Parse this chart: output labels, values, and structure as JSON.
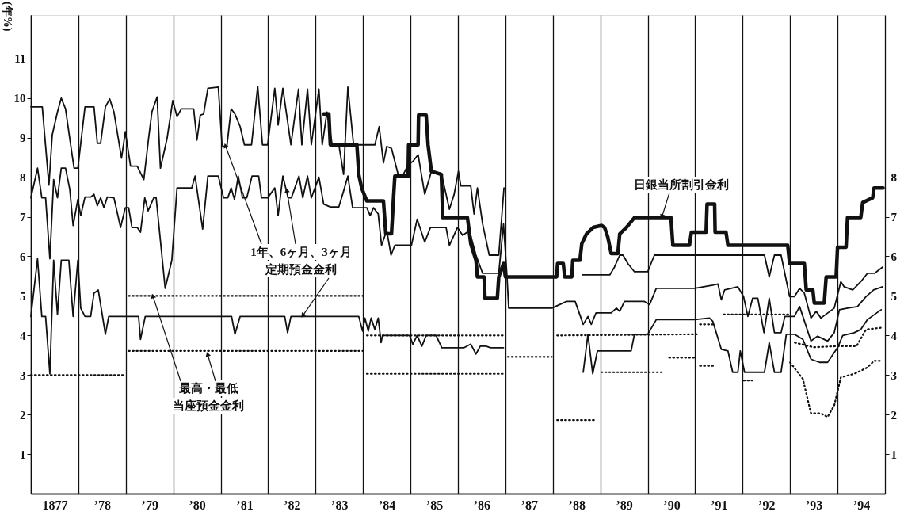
{
  "chart_data": {
    "type": "line",
    "ylabel": "(年%)",
    "xlim": [
      1876.5,
      1894.5
    ],
    "ylim": [
      0,
      12.1
    ],
    "yticks": [
      1,
      2,
      3,
      4,
      5,
      6,
      7,
      8,
      9,
      10,
      11
    ],
    "y2lim": [
      0,
      12.1
    ],
    "y2ticks": [
      1,
      2,
      3,
      4,
      5,
      6,
      7,
      8
    ],
    "xticks": [
      {
        "value": 1876.5,
        "label": null
      },
      {
        "value": 1877,
        "label": "1877"
      },
      {
        "value": 1877.5,
        "label": null
      },
      {
        "value": 1878,
        "label": "’78"
      },
      {
        "value": 1878.5,
        "label": null
      },
      {
        "value": 1879,
        "label": "’79"
      },
      {
        "value": 1879.5,
        "label": null
      },
      {
        "value": 1880,
        "label": "’80"
      },
      {
        "value": 1880.5,
        "label": null
      },
      {
        "value": 1881,
        "label": "’81"
      },
      {
        "value": 1881.5,
        "label": null
      },
      {
        "value": 1882,
        "label": "’82"
      },
      {
        "value": 1882.5,
        "label": null
      },
      {
        "value": 1883,
        "label": "’83"
      },
      {
        "value": 1883.5,
        "label": null
      },
      {
        "value": 1884,
        "label": "’84"
      },
      {
        "value": 1884.5,
        "label": null
      },
      {
        "value": 1885,
        "label": "’85"
      },
      {
        "value": 1885.5,
        "label": null
      },
      {
        "value": 1886,
        "label": "’86"
      },
      {
        "value": 1886.5,
        "label": null
      },
      {
        "value": 1887,
        "label": "’87"
      },
      {
        "value": 1887.5,
        "label": null
      },
      {
        "value": 1888,
        "label": "’88"
      },
      {
        "value": 1888.5,
        "label": null
      },
      {
        "value": 1889,
        "label": "’89"
      },
      {
        "value": 1889.5,
        "label": null
      },
      {
        "value": 1890,
        "label": "’90"
      },
      {
        "value": 1890.5,
        "label": null
      },
      {
        "value": 1891,
        "label": "’91"
      },
      {
        "value": 1891.5,
        "label": null
      },
      {
        "value": 1892,
        "label": "’92"
      },
      {
        "value": 1892.5,
        "label": null
      },
      {
        "value": 1893,
        "label": "’93"
      },
      {
        "value": 1893.5,
        "label": null
      },
      {
        "value": 1894,
        "label": "’94"
      },
      {
        "value": 1894.5,
        "label": null
      }
    ],
    "grid": "x",
    "annotations": [
      {
        "text": "1年、6ヶ月、3ヶ月",
        "x": 1880.6,
        "y": 8.8
      },
      {
        "text": "定期預金金利",
        "x": 1882.23,
        "y": 4.5
      },
      {
        "text": "最高・最低",
        "x": 1879.07,
        "y": 5.0
      },
      "当座預金金利",
      {
        "text": "日銀当所割引金利",
        "x": 1889.8,
        "y": 7.0
      }
    ],
    "series": [
      {
        "color": "#111111",
        "line_style": "solid",
        "x": [
          1876.5,
          1876.74,
          1876.88,
          1876.95,
          1877.06,
          1877.14,
          1877.23,
          1877.34,
          1877.41,
          1877.49,
          1877.64,
          1877.83,
          1877.9,
          1877.97,
          1878.07,
          1878.16,
          1878.25,
          1878.41,
          1878.49,
          1878.6,
          1878.74,
          1878.88,
          1878.98,
          1879.05,
          1879.16,
          1879.23,
          1879.37,
          1879.49,
          1879.58,
          1879.67,
          1879.93,
          1880.0,
          1880.07,
          1880.14,
          1880.23,
          1880.45,
          1880.53,
          1880.63,
          1880.72,
          1880.8,
          1880.91,
          1881.0,
          1881.15,
          1881.28,
          1881.38,
          1881.49,
          1881.64,
          1881.71,
          1881.81,
          1881.98,
          1882.14,
          1882.21,
          1882.33,
          1882.41,
          1882.57,
          1882.64,
          1882.74,
          1882.85,
          1882.99,
          1883.09,
          1883.18,
          1883.3,
          1883.75,
          1883.84,
          1883.93,
          1884.0,
          1884.1,
          1884.24,
          1884.35,
          1884.45,
          1884.55,
          1884.66,
          1884.8,
          1884.94,
          1885.15,
          1885.32,
          1885.42,
          1885.51,
          1885.56,
          1885.77,
          1885.84,
          1885.91,
          1886.02,
          1886.16,
          1886.36,
          1886.47,
          1887.0,
          1888.13,
          1888.7,
          1888.8,
          1888.91,
          1888.98,
          1889.08,
          1889.22,
          1889.5,
          1889.64,
          1891.96,
          1892.06,
          1892.17,
          1892.31,
          1892.49,
          1892.59,
          1892.7,
          1892.8,
          1892.94,
          1893.05,
          1893.15,
          1893.43,
          1893.57,
          1893.64,
          1893.82,
          1893.99,
          1894.13,
          1894.28,
          1894.45
        ],
        "values": [
          9.78,
          9.78,
          7.8,
          9.07,
          9.65,
          10.0,
          9.73,
          8.8,
          8.23,
          8.23,
          9.78,
          9.78,
          8.86,
          8.86,
          9.78,
          9.98,
          9.65,
          8.48,
          9.15,
          8.28,
          8.28,
          7.94,
          8.98,
          9.65,
          10.03,
          8.23,
          8.98,
          9.94,
          9.53,
          9.73,
          9.73,
          8.94,
          9.57,
          9.6,
          10.25,
          10.28,
          8.78,
          8.78,
          9.73,
          9.6,
          9.28,
          8.82,
          8.82,
          10.3,
          8.82,
          8.82,
          10.25,
          9.32,
          10.25,
          8.82,
          10.23,
          8.82,
          10.23,
          8.82,
          10.23,
          8.82,
          9.65,
          8.82,
          8.82,
          8.07,
          10.28,
          8.82,
          8.82,
          9.28,
          8.36,
          8.78,
          8.73,
          8.07,
          8.07,
          8.32,
          8.4,
          8.57,
          7.57,
          8.15,
          8.1,
          7.19,
          7.57,
          8.15,
          7.78,
          7.78,
          7.07,
          7.73,
          6.82,
          6.03,
          6.03,
          7.73,
          null,
          5.53,
          5.53,
          5.73,
          6.03,
          6.03,
          5.82,
          5.61,
          5.61,
          6.03,
          6.03,
          5.48,
          6.03,
          6.03,
          4.98,
          4.98,
          5.19,
          5.07,
          4.44,
          4.61,
          4.44,
          4.69,
          5.36,
          5.23,
          5.15,
          5.36,
          5.57,
          5.57,
          5.73
        ]
      },
      {
        "color": "#111111",
        "line_style": "solid",
        "x": [
          1876.5,
          1876.64,
          1876.73,
          1876.81,
          1876.9,
          1876.98,
          1877.06,
          1877.14,
          1877.23,
          1877.32,
          1877.39,
          1877.49,
          1877.55,
          1877.64,
          1877.76,
          1877.83,
          1877.9,
          1877.97,
          1878.04,
          1878.11,
          1878.25,
          1878.39,
          1878.49,
          1878.56,
          1878.63,
          1878.74,
          1878.81,
          1878.9,
          1878.97,
          1879.09,
          1879.14,
          1879.33,
          1879.47,
          1879.58,
          1879.89,
          1879.96,
          1880.12,
          1880.23,
          1880.45,
          1880.56,
          1880.65,
          1880.72,
          1880.79,
          1880.87,
          1880.96,
          1881.05,
          1881.16,
          1881.3,
          1881.36,
          1881.49,
          1881.64,
          1881.71,
          1881.81,
          1881.92,
          1881.99,
          1882.15,
          1882.23,
          1882.33,
          1882.41,
          1882.57,
          1882.67,
          1882.81,
          1882.99,
          1883.09,
          1883.18,
          1883.28,
          1883.58,
          1883.65,
          1883.72,
          1883.82,
          1883.89,
          1884.0,
          1884.09,
          1884.17,
          1884.52,
          1884.64,
          1884.8,
          1884.92,
          1885.25,
          1885.32,
          1885.49,
          1885.6,
          1885.74,
          1885.88,
          1886.02,
          1886.36,
          1886.46,
          1886.53,
          1886.57,
          1887.48,
          1887.79,
          1887.97,
          1888.14,
          1888.24,
          1888.31,
          1888.41,
          1888.73,
          1888.84,
          1888.91,
          1889.01,
          1889.43,
          1889.54,
          1889.68,
          1890.49,
          1890.87,
          1890.98,
          1891.05,
          1891.12,
          1891.4,
          1891.52,
          1891.61,
          1891.71,
          1891.82,
          1891.95,
          1892.06,
          1892.17,
          1892.31,
          1892.39,
          1892.59,
          1892.7,
          1892.77,
          1892.94,
          1893.08,
          1893.29,
          1893.43,
          1893.54,
          1893.71,
          1893.92,
          1894.1,
          1894.26,
          1894.45
        ],
        "values": [
          7.48,
          8.23,
          7.48,
          7.48,
          5.94,
          7.94,
          7.48,
          8.23,
          8.23,
          7.69,
          6.78,
          7.44,
          7.03,
          7.5,
          7.5,
          7.57,
          7.28,
          7.48,
          7.23,
          7.5,
          7.48,
          6.73,
          7.23,
          7.23,
          6.73,
          6.73,
          6.61,
          7.48,
          7.15,
          7.48,
          7.48,
          5.19,
          5.9,
          7.73,
          7.73,
          8.03,
          6.69,
          8.03,
          8.03,
          7.48,
          7.48,
          7.73,
          7.44,
          8.03,
          7.48,
          7.48,
          8.03,
          8.03,
          7.48,
          7.48,
          7.73,
          7.03,
          8.03,
          7.48,
          7.48,
          8.03,
          7.48,
          8.03,
          7.48,
          8.0,
          7.32,
          7.25,
          7.25,
          7.65,
          8.03,
          7.23,
          7.23,
          7.03,
          7.23,
          7.07,
          6.28,
          6.65,
          6.03,
          6.28,
          6.28,
          6.94,
          6.36,
          6.73,
          6.73,
          6.28,
          6.73,
          6.53,
          6.65,
          6.03,
          5.57,
          5.57,
          6.82,
          5.57,
          4.69,
          4.69,
          4.86,
          4.86,
          4.28,
          4.48,
          4.28,
          4.57,
          4.57,
          4.69,
          4.61,
          4.86,
          4.86,
          4.78,
          5.19,
          5.19,
          5.27,
          5.3,
          4.9,
          5.15,
          5.23,
          4.98,
          4.48,
          4.94,
          4.94,
          4.07,
          4.94,
          4.07,
          4.07,
          4.48,
          4.48,
          4.73,
          4.48,
          3.86,
          3.98,
          3.86,
          4.07,
          4.65,
          4.69,
          4.73,
          4.98,
          5.15,
          5.23
        ]
      },
      {
        "color": "#111111",
        "line_style": "solid",
        "x": [
          1876.5,
          1876.64,
          1876.73,
          1876.81,
          1876.9,
          1876.98,
          1877.06,
          1877.14,
          1877.3,
          1877.39,
          1877.49,
          1877.55,
          1877.64,
          1877.76,
          1877.83,
          1877.92,
          1878.07,
          1878.14,
          1878.77,
          1878.81,
          1878.91,
          1880.73,
          1880.8,
          1880.91,
          1881.85,
          1881.91,
          1881.98,
          1883.41,
          1883.49,
          1883.54,
          1883.61,
          1883.67,
          1883.75,
          1883.82,
          1883.88,
          1883.91,
          1884.48,
          1884.55,
          1884.64,
          1884.74,
          1884.83,
          1885.04,
          1885.16,
          1885.63,
          1885.77,
          1885.88,
          1885.97,
          1886.09,
          1886.19,
          1886.46,
          1887.3,
          1888.14,
          1888.24,
          1888.34,
          1888.44,
          1889.15,
          1889.22,
          1889.5,
          1889.68,
          1890.49,
          1890.8,
          1890.87,
          1891.05,
          1891.19,
          1891.29,
          1891.4,
          1891.45,
          1891.54,
          1891.96,
          1892.06,
          1892.17,
          1892.31,
          1892.42,
          1892.59,
          1892.77,
          1892.94,
          1893.12,
          1893.29,
          1893.5,
          1893.61,
          1893.85,
          1893.99,
          1894.13,
          1894.28,
          1894.42
        ],
        "values": [
          4.48,
          5.94,
          4.48,
          4.48,
          3.03,
          5.9,
          4.53,
          5.9,
          5.9,
          4.48,
          5.9,
          4.69,
          4.48,
          4.48,
          5.07,
          5.15,
          4.03,
          4.48,
          4.48,
          3.9,
          4.48,
          4.48,
          4.03,
          4.48,
          4.48,
          4.07,
          4.48,
          4.48,
          4.11,
          4.44,
          4.11,
          4.44,
          4.15,
          4.44,
          3.82,
          4.0,
          4.0,
          3.78,
          4.0,
          3.73,
          4.0,
          4.0,
          3.69,
          3.69,
          3.78,
          3.53,
          3.73,
          3.73,
          3.69,
          3.69,
          null,
          3.07,
          4.03,
          3.03,
          3.61,
          3.61,
          4.03,
          4.03,
          4.4,
          4.4,
          4.44,
          4.36,
          3.65,
          3.61,
          3.07,
          3.07,
          3.61,
          3.07,
          3.07,
          3.82,
          3.07,
          3.07,
          4.03,
          4.03,
          3.9,
          3.4,
          3.32,
          3.32,
          3.69,
          4.0,
          4.07,
          4.15,
          4.4,
          4.53,
          4.65
        ]
      },
      {
        "color": "#111111",
        "line_style": "solid",
        "x": [
          1882.67,
          1882.78,
          1882.81,
          1883.37,
          1883.41,
          1883.47,
          1883.58,
          1883.93,
          1883.98,
          1884.1,
          1884.14,
          1884.17,
          1884.45,
          1884.46,
          1884.66,
          1884.67,
          1884.83,
          1884.87,
          1884.94,
          1885.15,
          1885.18,
          1885.7,
          1885.77,
          1885.88,
          1885.91,
          1886.05,
          1886.07,
          1886.33,
          1886.36,
          1886.46,
          1886.5,
          1887.58,
          1887.6,
          1887.72,
          1887.75,
          1887.9,
          1887.92,
          1888.07,
          1888.11,
          1888.21,
          1888.35,
          1888.53,
          1888.59,
          1888.66,
          1888.73,
          1888.87,
          1888.91,
          1889.05,
          1889.22,
          1889.99,
          1890.03,
          1890.38,
          1890.42,
          1890.73,
          1890.75,
          1890.91,
          1890.92,
          1891.15,
          1891.19,
          1892.45,
          1892.49,
          1892.8,
          1892.84,
          1892.98,
          1893.01,
          1893.22,
          1893.26,
          1893.47,
          1893.5,
          1893.68,
          1893.71,
          1893.99,
          1894.03,
          1894.24,
          1894.27,
          1894.46
        ],
        "values": [
          9.6,
          9.6,
          8.82,
          8.82,
          8.07,
          7.73,
          7.4,
          7.4,
          6.57,
          6.57,
          7.44,
          8.03,
          8.03,
          8.82,
          8.82,
          9.57,
          9.57,
          8.82,
          8.15,
          8.07,
          6.98,
          6.98,
          6.32,
          5.9,
          5.48,
          5.48,
          4.94,
          4.94,
          5.48,
          5.82,
          5.48,
          5.48,
          5.82,
          5.82,
          5.48,
          5.48,
          5.9,
          5.9,
          6.32,
          6.57,
          6.73,
          6.78,
          6.73,
          6.48,
          6.07,
          6.07,
          6.57,
          6.73,
          6.98,
          6.98,
          6.28,
          6.28,
          6.61,
          6.61,
          7.32,
          7.32,
          6.61,
          6.61,
          6.28,
          6.28,
          5.82,
          5.82,
          5.15,
          5.15,
          4.82,
          4.82,
          5.48,
          5.48,
          6.23,
          6.23,
          6.98,
          6.98,
          7.36,
          7.48,
          7.73,
          7.73
        ]
      },
      {
        "color": "#111111",
        "line_style": "dotted",
        "x": [
          1876.5,
          1878.48,
          1878.5,
          1878.56,
          1883.5,
          1883.53,
          1883.58,
          1886.46,
          1886.5,
          1886.55,
          1887.48,
          1887.5,
          1887.59,
          1890.55,
          1890.57,
          1890.6,
          1890.92,
          1891.0,
          1891.1,
          1892.5,
          1892.52,
          1892.6,
          1893.0,
          1893.5,
          1893.9,
          1894.1,
          1894.45
        ],
        "values": [
          3.0,
          3.0,
          null,
          5.0,
          5.0,
          null,
          4.0,
          4.0,
          null,
          3.46,
          3.46,
          null,
          4.0,
          4.03,
          null,
          4.28,
          4.28,
          null,
          4.53,
          4.53,
          null,
          3.82,
          3.7,
          3.73,
          3.73,
          4.15,
          4.2
        ]
      },
      {
        "color": "#111111",
        "line_style": "dotted",
        "x": [
          1878.56,
          1883.5,
          1883.53,
          1883.58,
          1886.46,
          1887.0,
          1887.59,
          1888.4,
          1888.5,
          1888.52,
          1889.85,
          1889.9,
          1889.95,
          1890.5,
          1890.55,
          1890.6,
          1890.92,
          1891.1,
          1891.52,
          1891.73,
          1892.0,
          1892.5,
          1892.77,
          1892.94,
          1893.15,
          1893.29,
          1893.43,
          1893.57,
          1893.85,
          1894.13,
          1894.27,
          1894.45
        ],
        "values": [
          3.61,
          3.61,
          null,
          3.03,
          3.03,
          null,
          1.86,
          1.86,
          null,
          3.07,
          3.07,
          null,
          3.44,
          3.44,
          null,
          3.23,
          3.23,
          null,
          2.86,
          2.86,
          null,
          3.32,
          2.9,
          2.03,
          2.03,
          1.94,
          2.23,
          2.94,
          3.03,
          3.19,
          3.36,
          3.36
        ]
      }
    ]
  }
}
